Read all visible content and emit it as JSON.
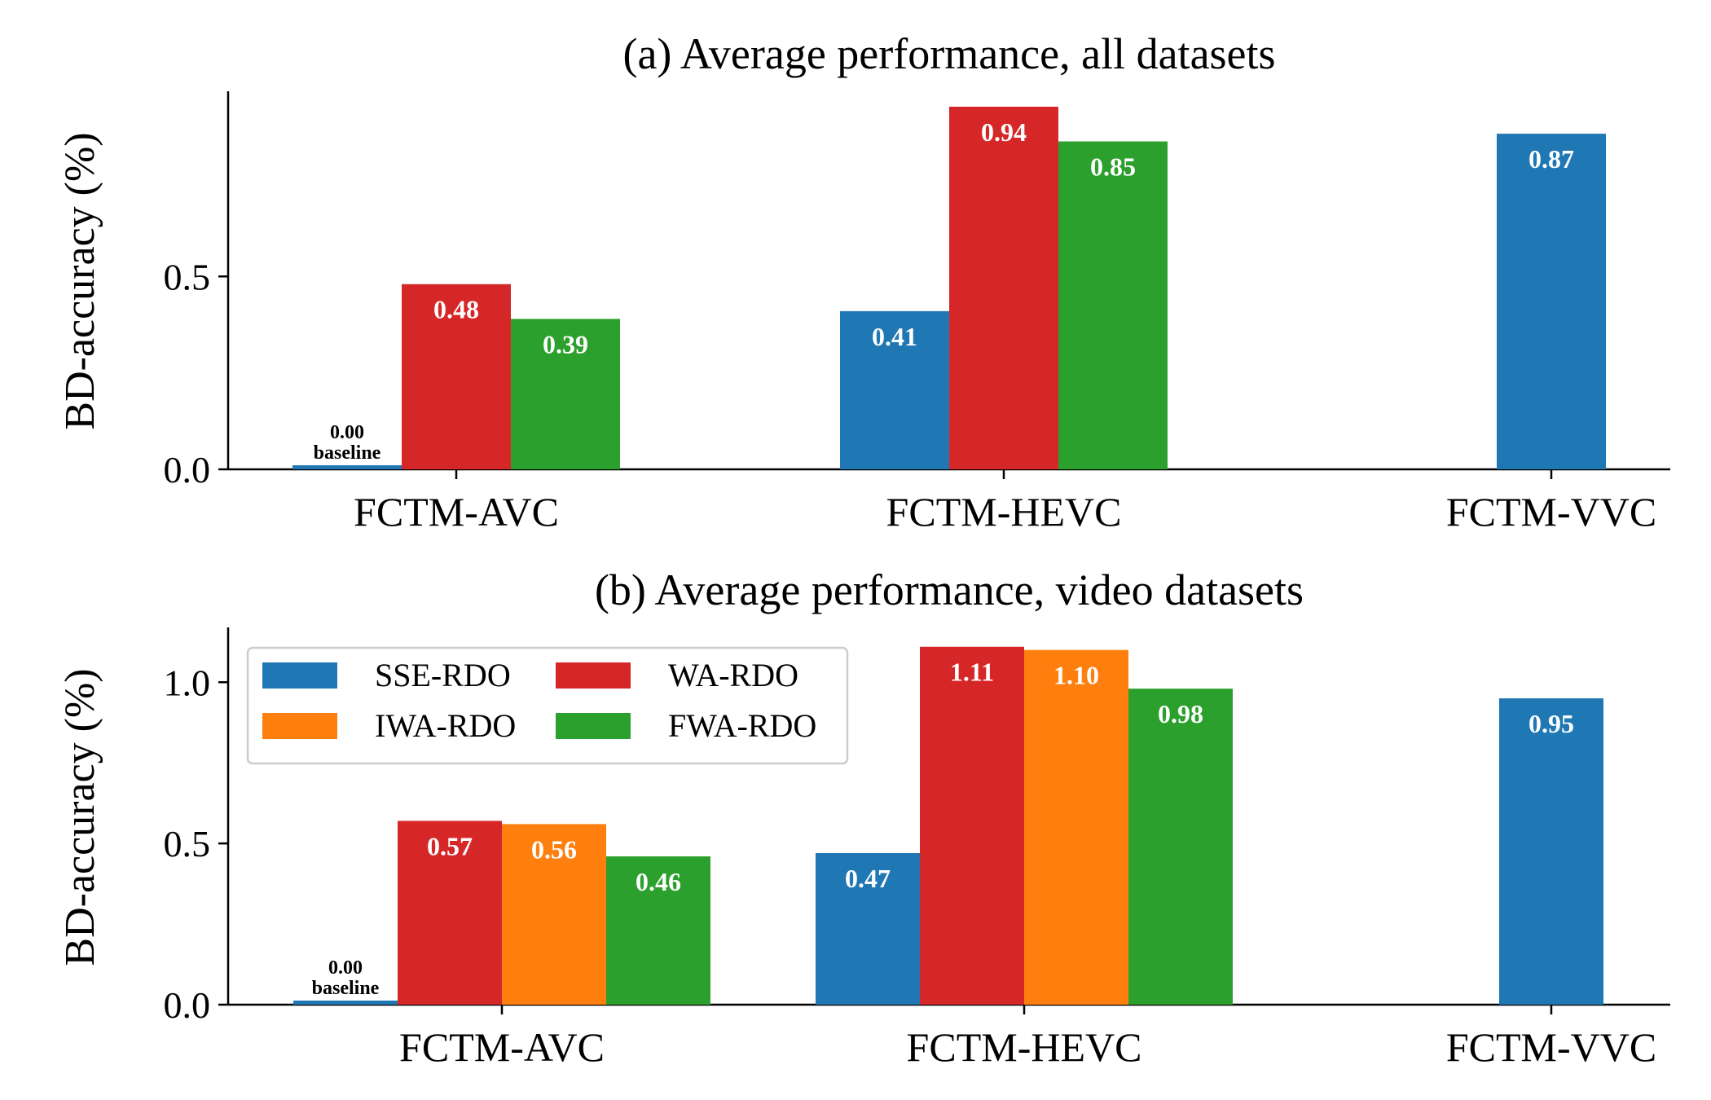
{
  "chart_data": [
    {
      "type": "bar",
      "title": "(a) Average performance, all datasets",
      "xlabel": "",
      "ylabel": "BD-accuracy (%)",
      "ylim": [
        0,
        0.98
      ],
      "yticks": [
        0.0,
        0.5
      ],
      "ytick_labels": [
        "0.0",
        "0.5"
      ],
      "categories": [
        "FCTM-AVC",
        "FCTM-HEVC",
        "FCTM-VVC"
      ],
      "series": [
        {
          "name": "SSE-RDO",
          "values": [
            0.0,
            0.41,
            0.87
          ],
          "labels": [
            "0.00",
            "0.41",
            "0.87"
          ]
        },
        {
          "name": "WA-RDO",
          "values": [
            0.48,
            0.94,
            null
          ],
          "labels": [
            "0.48",
            "0.94",
            ""
          ]
        },
        {
          "name": "FWA-RDO",
          "values": [
            0.39,
            0.85,
            null
          ],
          "labels": [
            "0.39",
            "0.85",
            ""
          ]
        }
      ],
      "baseline_note": "baseline",
      "legend": "none",
      "grid": false
    },
    {
      "type": "bar",
      "title": "(b) Average performance, video datasets",
      "xlabel": "",
      "ylabel": "BD-accuracy (%)",
      "ylim": [
        0,
        1.17
      ],
      "yticks": [
        0.0,
        0.5,
        1.0
      ],
      "ytick_labels": [
        "0.0",
        "0.5",
        "1.0"
      ],
      "categories": [
        "FCTM-AVC",
        "FCTM-HEVC",
        "FCTM-VVC"
      ],
      "series": [
        {
          "name": "SSE-RDO",
          "values": [
            0.0,
            0.47,
            0.95
          ],
          "labels": [
            "0.00",
            "0.47",
            "0.95"
          ]
        },
        {
          "name": "WA-RDO",
          "values": [
            0.57,
            1.11,
            null
          ],
          "labels": [
            "0.57",
            "1.11",
            ""
          ]
        },
        {
          "name": "IWA-RDO",
          "values": [
            0.56,
            1.1,
            null
          ],
          "labels": [
            "0.56",
            "1.10",
            ""
          ]
        },
        {
          "name": "FWA-RDO",
          "values": [
            0.46,
            0.98,
            null
          ],
          "labels": [
            "0.46",
            "0.98",
            ""
          ]
        }
      ],
      "baseline_note": "baseline",
      "legend": "top-left",
      "grid": false
    }
  ],
  "colors": {
    "SSE-RDO": "#1f77b4",
    "WA-RDO": "#d62728",
    "IWA-RDO": "#ff7f0e",
    "FWA-RDO": "#2ca02c",
    "axis": "#000000"
  }
}
